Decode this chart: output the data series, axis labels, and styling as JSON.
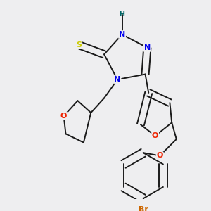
{
  "background_color": "#eeeef0",
  "bond_color": "#1a1a1a",
  "atom_colors": {
    "N": "#0000ee",
    "O": "#ee2200",
    "S": "#cccc00",
    "Br": "#cc6600",
    "NH": "#0000ee",
    "H": "#006666",
    "C": "#1a1a1a"
  },
  "font_size": 8.0,
  "bond_width": 1.4,
  "dbo": 0.018
}
